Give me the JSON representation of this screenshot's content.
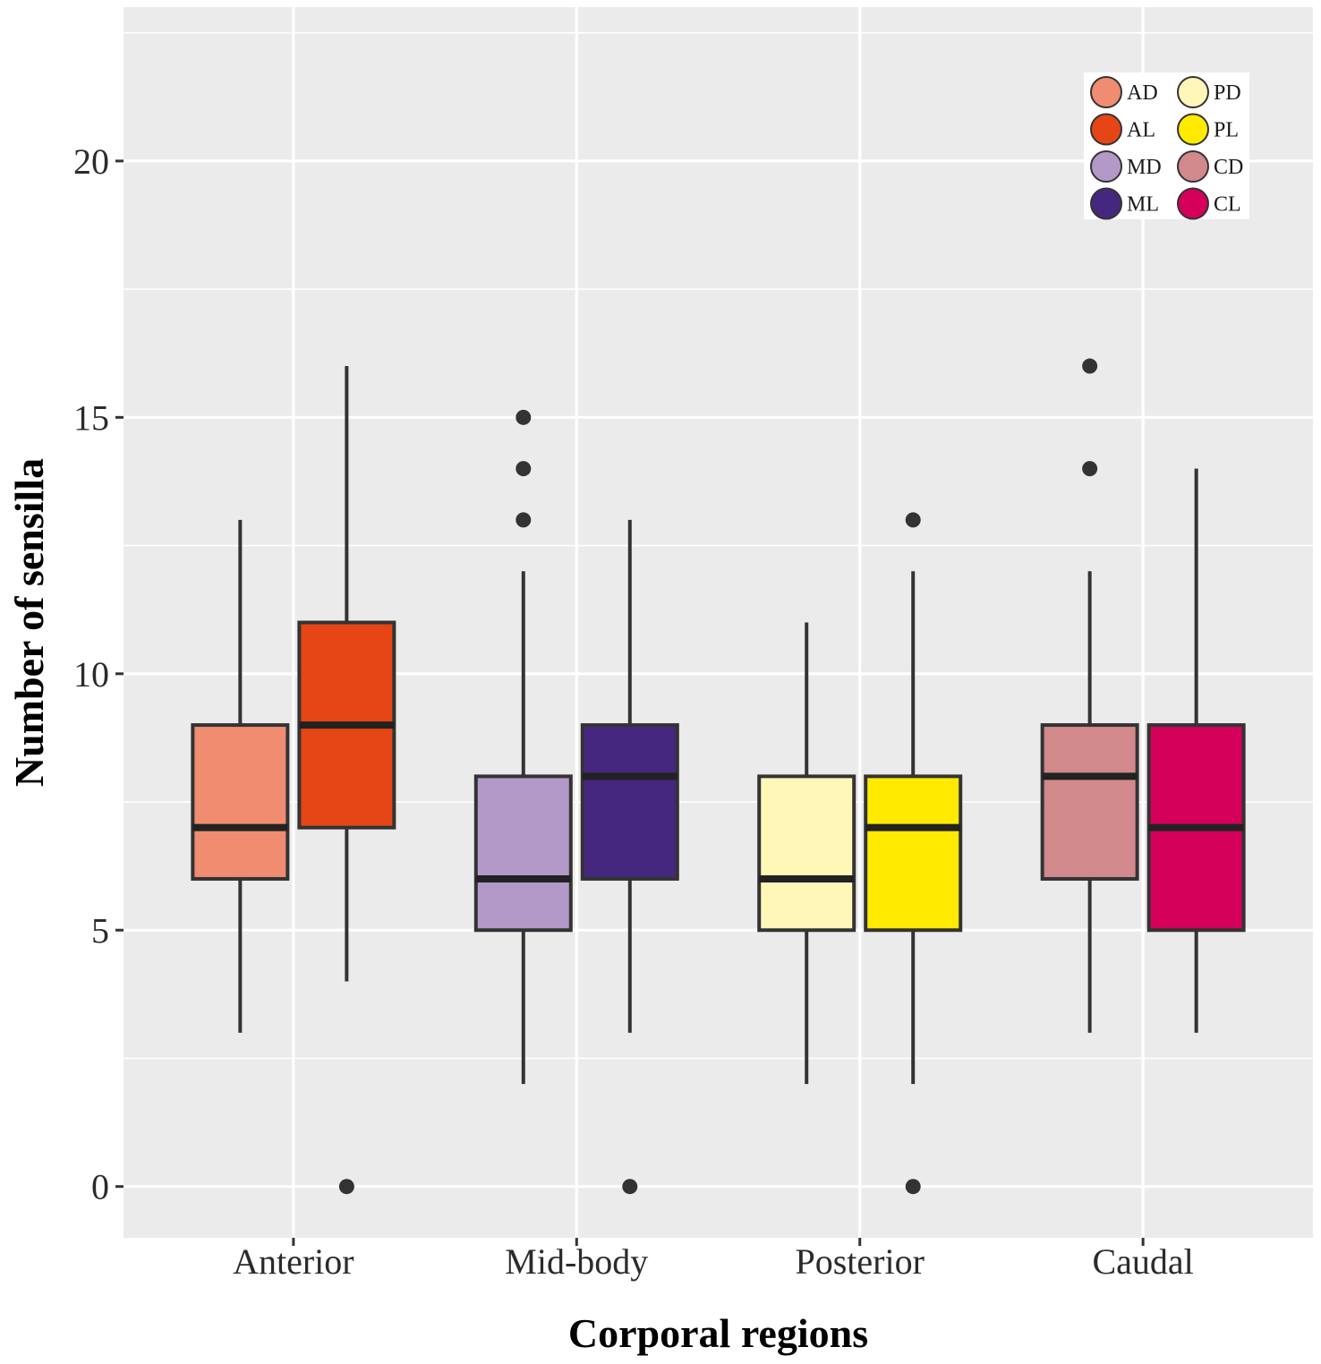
{
  "chart_data": {
    "type": "boxplot",
    "title": "",
    "xlabel": "Corporal regions",
    "ylabel": "Number of sensilla",
    "ylim": [
      -1,
      23
    ],
    "yticks": [
      0,
      5,
      10,
      15,
      20
    ],
    "grid": true,
    "legend_position": "top-right",
    "categories": [
      "Anterior",
      "Mid-body",
      "Posterior",
      "Caudal"
    ],
    "series": [
      {
        "name": "AD",
        "category": "Anterior",
        "color": "#F08C70",
        "whisker_low": 3,
        "q1": 6,
        "median": 7,
        "q3": 9,
        "whisker_high": 13,
        "outliers": []
      },
      {
        "name": "AL",
        "category": "Anterior",
        "color": "#E64515",
        "whisker_low": 4,
        "q1": 7,
        "median": 9,
        "q3": 11,
        "whisker_high": 16,
        "outliers": [
          0
        ]
      },
      {
        "name": "MD",
        "category": "Mid-body",
        "color": "#B399C8",
        "whisker_low": 2,
        "q1": 5,
        "median": 6,
        "q3": 8,
        "whisker_high": 12,
        "outliers": [
          13,
          14,
          15
        ]
      },
      {
        "name": "ML",
        "category": "Mid-body",
        "color": "#46277F",
        "whisker_low": 3,
        "q1": 6,
        "median": 8,
        "q3": 9,
        "whisker_high": 13,
        "outliers": [
          0
        ]
      },
      {
        "name": "PD",
        "category": "Posterior",
        "color": "#FFF6B8",
        "whisker_low": 2,
        "q1": 5,
        "median": 6,
        "q3": 8,
        "whisker_high": 11,
        "outliers": []
      },
      {
        "name": "PL",
        "category": "Posterior",
        "color": "#FFEA00",
        "whisker_low": 2,
        "q1": 5,
        "median": 7,
        "q3": 8,
        "whisker_high": 12,
        "outliers": [
          0,
          13
        ]
      },
      {
        "name": "CD",
        "category": "Caudal",
        "color": "#D1898C",
        "whisker_low": 3,
        "q1": 6,
        "median": 8,
        "q3": 9,
        "whisker_high": 12,
        "outliers": [
          14,
          16
        ]
      },
      {
        "name": "CL",
        "category": "Caudal",
        "color": "#D4005A",
        "whisker_low": 3,
        "q1": 5,
        "median": 7,
        "q3": 9,
        "whisker_high": 14,
        "outliers": []
      }
    ],
    "legend": {
      "columns": [
        [
          "AD",
          "AL",
          "MD",
          "ML"
        ],
        [
          "PD",
          "PL",
          "CD",
          "CL"
        ]
      ]
    },
    "colors": {
      "panel_background": "#EBEBEB",
      "grid": "#FFFFFF",
      "box_outline": "#333333",
      "outlier": "#333333"
    }
  }
}
